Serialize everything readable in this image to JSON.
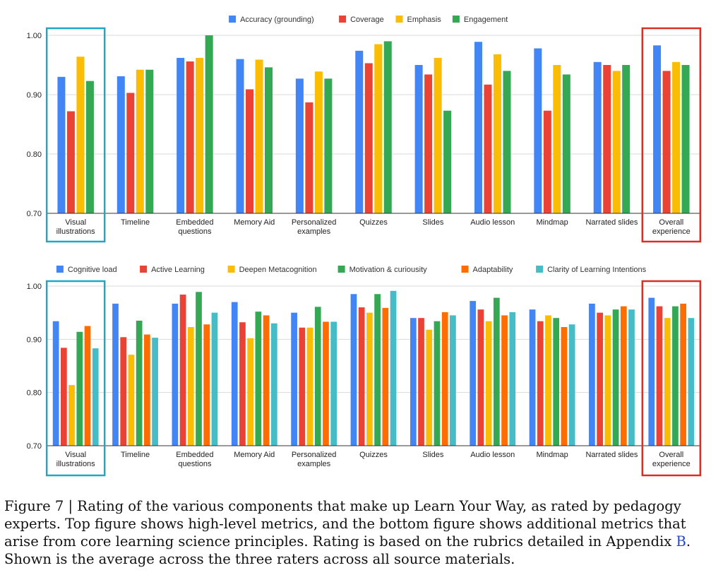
{
  "chart_data": [
    {
      "type": "bar",
      "categories": [
        [
          "Visual",
          "illustrations"
        ],
        [
          "Timeline"
        ],
        [
          "Embedded",
          "questions"
        ],
        [
          "Memory Aid"
        ],
        [
          "Personalized",
          "examples"
        ],
        [
          "Quizzes"
        ],
        [
          "Slides"
        ],
        [
          "Audio lesson"
        ],
        [
          "Mindmap"
        ],
        [
          "Narrated slides"
        ],
        [
          "Overall",
          "experience"
        ]
      ],
      "series": [
        {
          "name": "Accuracy (grounding)",
          "color": "#4285f4",
          "values": [
            0.93,
            0.931,
            0.962,
            0.96,
            0.927,
            0.974,
            0.95,
            0.989,
            0.978,
            0.955,
            0.983
          ]
        },
        {
          "name": "Coverage",
          "color": "#ea4335",
          "values": [
            0.872,
            0.903,
            0.956,
            0.909,
            0.887,
            0.953,
            0.934,
            0.917,
            0.873,
            0.95,
            0.94
          ]
        },
        {
          "name": "Emphasis",
          "color": "#fbbc04",
          "values": [
            0.964,
            0.942,
            0.962,
            0.959,
            0.939,
            0.985,
            0.962,
            0.968,
            0.95,
            0.94,
            0.955
          ]
        },
        {
          "name": "Engagement",
          "color": "#34a853",
          "values": [
            0.923,
            0.942,
            1.0,
            0.946,
            0.927,
            0.99,
            0.873,
            0.94,
            0.934,
            0.95,
            0.95
          ]
        }
      ],
      "ylim": [
        0.7,
        1.0
      ],
      "yticks": [
        "1.00",
        "0.90",
        "0.80",
        "0.70"
      ],
      "grid": true,
      "legend_position": "top",
      "highlights": [
        {
          "category_index": 0,
          "color": "#1ea7c9"
        },
        {
          "category_index": 10,
          "color": "#d93025"
        }
      ]
    },
    {
      "type": "bar",
      "categories": [
        [
          "Visual",
          "illustrations"
        ],
        [
          "Timeline"
        ],
        [
          "Embedded",
          "questions"
        ],
        [
          "Memory Aid"
        ],
        [
          "Personalized",
          "examples"
        ],
        [
          "Quizzes"
        ],
        [
          "Slides"
        ],
        [
          "Audio lesson"
        ],
        [
          "Mindmap"
        ],
        [
          "Narrated slides"
        ],
        [
          "Overall",
          "experience"
        ]
      ],
      "series": [
        {
          "name": "Cognitive load",
          "color": "#4285f4",
          "values": [
            0.934,
            0.967,
            0.967,
            0.97,
            0.95,
            0.985,
            0.94,
            0.972,
            0.956,
            0.967,
            0.978
          ]
        },
        {
          "name": "Active Learning",
          "color": "#ea4335",
          "values": [
            0.884,
            0.904,
            0.984,
            0.932,
            0.922,
            0.96,
            0.94,
            0.956,
            0.934,
            0.95,
            0.962
          ]
        },
        {
          "name": "Deepen Metacognition",
          "color": "#fbbc04",
          "values": [
            0.814,
            0.871,
            0.923,
            0.902,
            0.922,
            0.95,
            0.918,
            0.934,
            0.945,
            0.945,
            0.94
          ]
        },
        {
          "name": "Motivation & curiousity",
          "color": "#34a853",
          "values": [
            0.914,
            0.935,
            0.989,
            0.952,
            0.961,
            0.985,
            0.934,
            0.978,
            0.94,
            0.956,
            0.962
          ]
        },
        {
          "name": "Adaptability",
          "color": "#ff6d01",
          "values": [
            0.925,
            0.909,
            0.928,
            0.945,
            0.933,
            0.959,
            0.951,
            0.945,
            0.923,
            0.962,
            0.967
          ]
        },
        {
          "name": "Clarity of Learning Intentions",
          "color": "#46bdc6",
          "values": [
            0.883,
            0.903,
            0.95,
            0.93,
            0.933,
            0.991,
            0.945,
            0.951,
            0.928,
            0.956,
            0.94
          ]
        }
      ],
      "ylim": [
        0.7,
        1.0
      ],
      "yticks": [
        "1.00",
        "0.90",
        "0.80",
        "0.70"
      ],
      "grid": true,
      "legend_position": "top",
      "highlights": [
        {
          "category_index": 0,
          "color": "#1ea7c9"
        },
        {
          "category_index": 10,
          "color": "#d93025"
        }
      ]
    }
  ],
  "caption": {
    "prefix": "Figure 7 | Rating of the various components that make up Learn Your Way, as rated by pedagogy experts. Top figure shows high-level metrics, and the bottom figure shows additional metrics that arise from core learning science principles. Rating is based on the rubrics detailed in Appendix ",
    "link": "B",
    "suffix": ". Shown is the average across the three raters across all source materials."
  }
}
